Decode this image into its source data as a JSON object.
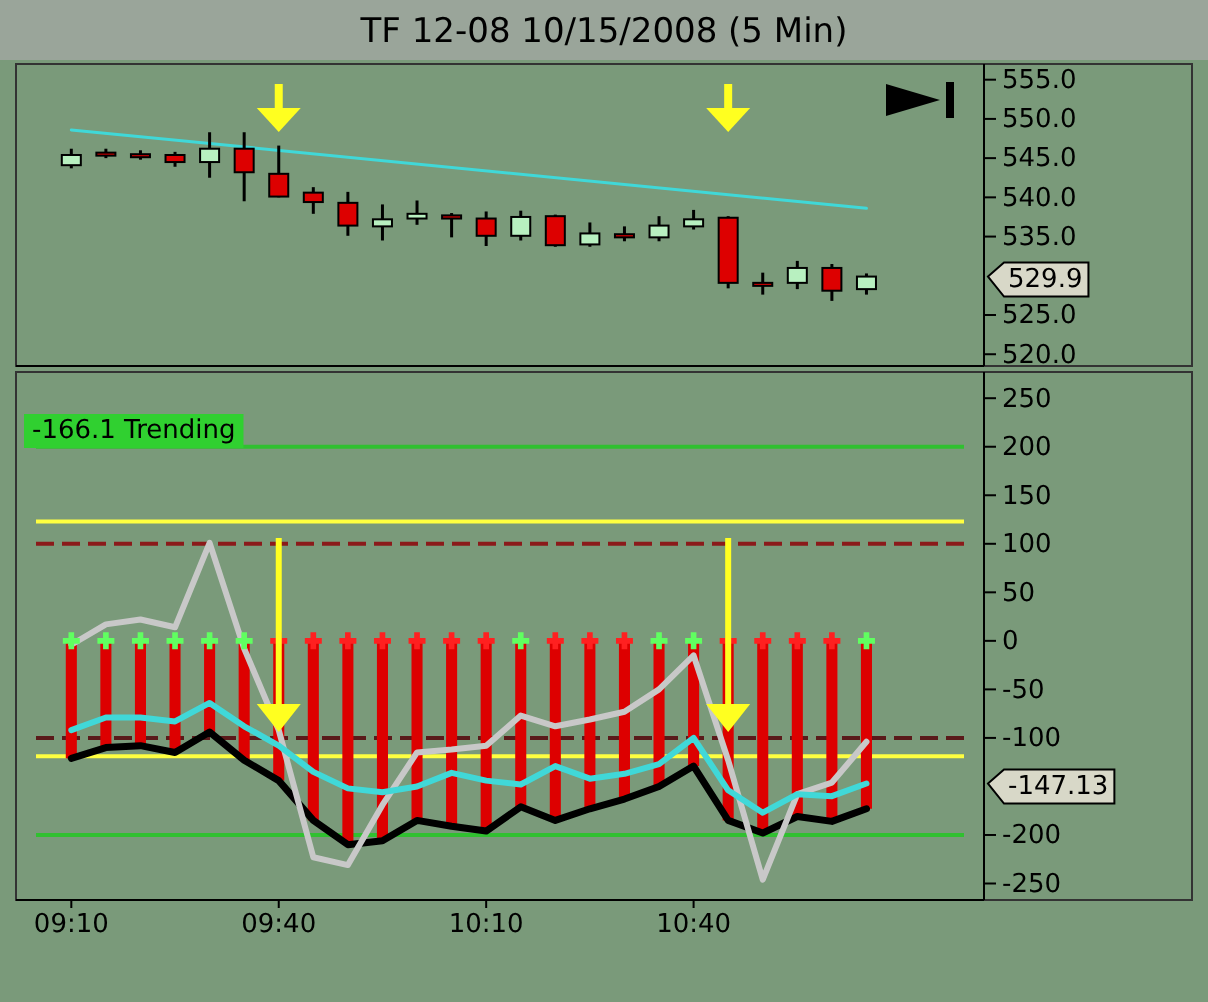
{
  "chart_data": [
    {
      "type": "candlestick",
      "title": "TF 12-08  10/15/2008 (5 Min)",
      "x": [
        "2008-10-15T09:10",
        "2008-10-15T09:15",
        "2008-10-15T09:20",
        "2008-10-15T09:25",
        "2008-10-15T09:30",
        "2008-10-15T09:35",
        "2008-10-15T09:40",
        "2008-10-15T09:45",
        "2008-10-15T09:50",
        "2008-10-15T09:55",
        "2008-10-15T10:00",
        "2008-10-15T10:05",
        "2008-10-15T10:10",
        "2008-10-15T10:15",
        "2008-10-15T10:20",
        "2008-10-15T10:25",
        "2008-10-15T10:30",
        "2008-10-15T10:35",
        "2008-10-15T10:40",
        "2008-10-15T10:45",
        "2008-10-15T10:50",
        "2008-10-15T10:55",
        "2008-10-15T11:00",
        "2008-10-15T11:05"
      ],
      "ohlc": [
        [
          544.1,
          546.2,
          543.7,
          545.4
        ],
        [
          545.7,
          546.2,
          545.0,
          545.5
        ],
        [
          545.5,
          546.0,
          544.8,
          545.3
        ],
        [
          545.4,
          545.8,
          543.9,
          544.5
        ],
        [
          544.5,
          548.3,
          542.5,
          546.2
        ],
        [
          546.2,
          548.3,
          539.5,
          543.2
        ],
        [
          543.0,
          546.6,
          540.0,
          540.1
        ],
        [
          540.6,
          541.3,
          537.9,
          539.4
        ],
        [
          539.3,
          540.7,
          535.1,
          536.4
        ],
        [
          536.3,
          539.1,
          534.5,
          537.2
        ],
        [
          537.3,
          539.6,
          536.5,
          537.9
        ],
        [
          537.7,
          538.0,
          534.9,
          537.3
        ],
        [
          537.3,
          538.2,
          533.8,
          535.1
        ],
        [
          535.1,
          538.3,
          534.5,
          537.5
        ],
        [
          537.6,
          537.8,
          533.7,
          533.9
        ],
        [
          534.0,
          536.8,
          533.7,
          535.4
        ],
        [
          535.3,
          536.3,
          534.4,
          534.9
        ],
        [
          534.9,
          537.6,
          534.4,
          536.4
        ],
        [
          536.3,
          538.4,
          535.9,
          537.2
        ],
        [
          537.4,
          537.6,
          528.4,
          529.1
        ],
        [
          529.1,
          530.4,
          527.6,
          529.0
        ],
        [
          529.1,
          531.9,
          528.3,
          531.0
        ],
        [
          531.0,
          531.5,
          526.8,
          528.1
        ],
        [
          528.3,
          530.3,
          527.6,
          529.9
        ]
      ],
      "series": [
        {
          "type": "line",
          "color": "#40d8d8",
          "x": [
            "2008-10-15T09:10",
            "2008-10-15T11:05"
          ],
          "values": [
            548.6,
            538.6
          ]
        }
      ],
      "xlim": [
        "2008-10-15T09:02",
        "2008-10-15T11:22"
      ],
      "ylim": [
        518.5,
        557
      ],
      "yticks": [
        {
          "value": 520,
          "label": "520.0"
        },
        {
          "value": 525,
          "label": "525.0"
        },
        {
          "value": 535,
          "label": "535.0"
        },
        {
          "value": 540,
          "label": "540.0"
        },
        {
          "value": 545,
          "label": "545.0"
        },
        {
          "value": 550,
          "label": "550.0"
        },
        {
          "value": 555,
          "label": "555.0"
        }
      ],
      "tick_labels": "y",
      "grid": false,
      "annotations": [
        "529.9"
      ]
    },
    {
      "type": "bar",
      "x": [
        "2008-10-15T09:10",
        "2008-10-15T09:15",
        "2008-10-15T09:20",
        "2008-10-15T09:25",
        "2008-10-15T09:30",
        "2008-10-15T09:35",
        "2008-10-15T09:40",
        "2008-10-15T09:45",
        "2008-10-15T09:50",
        "2008-10-15T09:55",
        "2008-10-15T10:00",
        "2008-10-15T10:05",
        "2008-10-15T10:10",
        "2008-10-15T10:15",
        "2008-10-15T10:20",
        "2008-10-15T10:25",
        "2008-10-15T10:30",
        "2008-10-15T10:35",
        "2008-10-15T10:40",
        "2008-10-15T10:45",
        "2008-10-15T10:50",
        "2008-10-15T10:55",
        "2008-10-15T11:00",
        "2008-10-15T11:05"
      ],
      "series": [
        {
          "type": "bar",
          "color": "#dd0000",
          "values": [
            -121,
            -110,
            -108,
            -115,
            -94,
            -123,
            -144,
            -185,
            -210,
            -206,
            -185,
            -191,
            -196,
            -171,
            -185,
            -173,
            -163,
            -150,
            -129,
            -185,
            -198,
            -181,
            -186,
            -173
          ]
        },
        {
          "type": "line",
          "color": "#000000",
          "values": [
            -121,
            -110,
            -108,
            -115,
            -94,
            -123,
            -144,
            -185,
            -210,
            -206,
            -185,
            -191,
            -196,
            -171,
            -185,
            -173,
            -163,
            -150,
            -129,
            -185,
            -198,
            -181,
            -186,
            -173
          ]
        },
        {
          "type": "line",
          "color": "#c8c8c8",
          "values": [
            -4,
            17,
            22,
            14,
            101,
            -8,
            -92,
            -223,
            -231,
            -169,
            -115,
            -112,
            -108,
            -77,
            -88,
            -81,
            -73,
            -50,
            -15,
            -123,
            -246,
            -158,
            -146,
            -104
          ]
        },
        {
          "type": "line",
          "color": "#40d8d8",
          "values": [
            -92,
            -79,
            -79,
            -83,
            -64,
            -88,
            -108,
            -135,
            -152,
            -156,
            -150,
            -136,
            -144,
            -148,
            -129,
            -142,
            -137,
            -127,
            -100,
            -154,
            -177,
            -158,
            -160,
            -147
          ]
        },
        {
          "type": "scatter",
          "marker": "cross",
          "values": [
            0,
            0,
            0,
            0,
            0,
            0,
            0,
            0,
            0,
            0,
            0,
            0,
            0,
            0,
            0,
            0,
            0,
            0,
            0,
            0,
            0,
            0,
            0,
            0
          ],
          "colors": [
            "#60ff60",
            "#60ff60",
            "#60ff60",
            "#60ff60",
            "#60ff60",
            "#60ff60",
            "#ff2020",
            "#ff2020",
            "#ff2020",
            "#ff2020",
            "#ff2020",
            "#ff2020",
            "#ff2020",
            "#60ff60",
            "#ff2020",
            "#ff2020",
            "#ff2020",
            "#60ff60",
            "#60ff60",
            "#ff2020",
            "#ff2020",
            "#ff2020",
            "#ff2020",
            "#60ff60"
          ]
        }
      ],
      "xlim": [
        "2008-10-15T09:02",
        "2008-10-15T11:22"
      ],
      "xticks": [
        {
          "value": "2008-10-15T09:10",
          "label": "09:10"
        },
        {
          "value": "2008-10-15T09:40",
          "label": "09:40"
        },
        {
          "value": "2008-10-15T10:10",
          "label": "10:10"
        },
        {
          "value": "2008-10-15T10:40",
          "label": "10:40"
        }
      ],
      "ylim": [
        -267,
        277
      ],
      "yticks": [
        -250,
        -200,
        -100,
        -50,
        0,
        50,
        100,
        150,
        200,
        250
      ],
      "grid": false,
      "ref_lines": [
        {
          "axis": "y",
          "value": 200,
          "color": "#30c030",
          "line_style": "solid"
        },
        {
          "axis": "y",
          "value": 123,
          "color": "#ffff40",
          "line_style": "solid"
        },
        {
          "axis": "y",
          "value": 100,
          "color": "#8b1a1a",
          "line_style": "dashed"
        },
        {
          "axis": "y",
          "value": -100,
          "color": "#5a1a1a",
          "line_style": "dashed"
        },
        {
          "axis": "y",
          "value": -119,
          "color": "#ffff40",
          "line_style": "solid"
        },
        {
          "axis": "y",
          "value": -200,
          "color": "#30c030",
          "line_style": "solid"
        }
      ],
      "annotations": [
        "-166.1  Trending",
        "-147.13"
      ]
    }
  ]
}
